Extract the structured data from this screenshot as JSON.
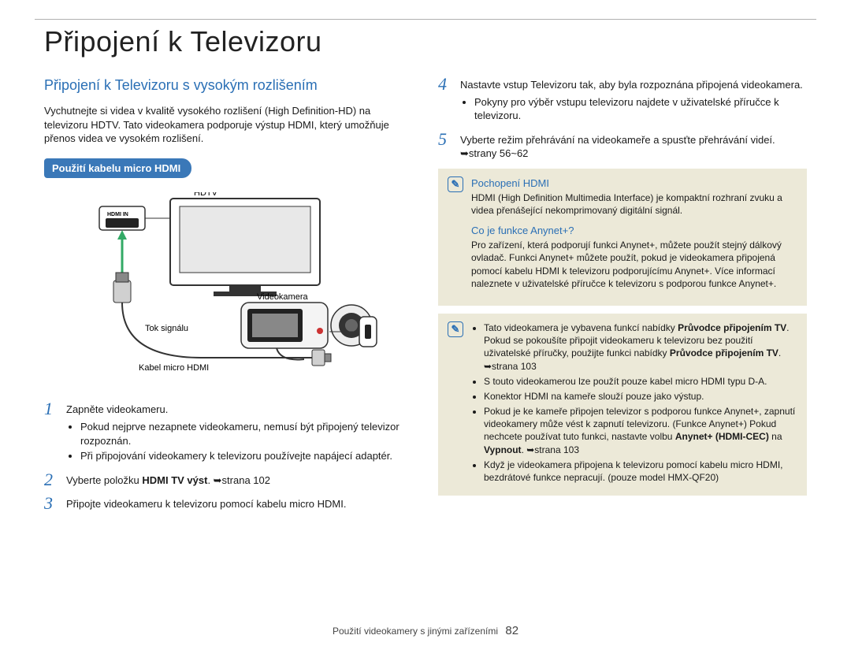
{
  "page": {
    "title": "Připojení k Televizoru",
    "footer_label": "Použití videokamery s jinými zařízeními",
    "page_number": "82"
  },
  "colors": {
    "accent": "#2a6fb5",
    "pill_bg": "#3a78b8",
    "box_bg": "#ece9d8",
    "text": "#1a1a1a"
  },
  "left": {
    "heading": "Připojení k Televizoru s vysokým rozlišením",
    "intro": "Vychutnejte si videa v kvalitě vysokého rozlišení (High Definition-HD) na televizoru HDTV. Tato videokamera podporuje výstup HDMI, který umožňuje přenos videa ve vysokém rozlišení.",
    "pill": "Použití kabelu micro HDMI",
    "diagram_labels": {
      "hdtv": "HDTV",
      "hdmi_in": "HDMI IN",
      "camcorder": "Videokamera",
      "signal": "Tok signálu",
      "cable": "Kabel micro HDMI"
    },
    "steps": [
      {
        "num": "1",
        "text": "Zapněte videokameru.",
        "bullets": [
          "Pokud nejprve nezapnete videokameru, nemusí být připojený televizor rozpoznán.",
          "Při připojování videokamery k televizoru používejte napájecí adaptér."
        ]
      },
      {
        "num": "2",
        "text_html": "Vyberte položku <b>HDMI TV výst</b>. ➥strana 102"
      },
      {
        "num": "3",
        "text": "Připojte videokameru k televizoru pomocí kabelu micro HDMI."
      }
    ]
  },
  "right": {
    "steps": [
      {
        "num": "4",
        "text": "Nastavte vstup Televizoru tak, aby byla rozpoznána připojená videokamera.",
        "bullets": [
          "Pokyny pro výběr vstupu televizoru najdete v uživatelské příručce k televizoru."
        ]
      },
      {
        "num": "5",
        "text": "Vyberte režim přehrávání na videokameře a spusťte přehrávání videí. ➥strany 56~62"
      }
    ],
    "box1": {
      "icon": "✎",
      "sections": [
        {
          "title": "Pochopení HDMI",
          "body": "HDMI (High Definition Multimedia Interface) je kompaktní rozhraní zvuku a videa přenášející nekomprimovaný digitální signál."
        },
        {
          "title": "Co je funkce Anynet+?",
          "body": "Pro zařízení, která podporují funkci Anynet+, můžete použít stejný dálkový ovladač. Funkci Anynet+ můžete použít, pokud je videokamera připojená pomocí kabelu HDMI k televizoru podporujícímu Anynet+. Více informací naleznete v uživatelské příručce k televizoru s podporou funkce Anynet+."
        }
      ]
    },
    "box2": {
      "icon": "✎",
      "bullets_html": [
        "Tato videokamera je vybavena funkcí nabídky <b>Průvodce připojením TV</b>. Pokud se pokoušíte připojit videokameru k televizoru bez použití uživatelské příručky, použijte funkci nabídky <b>Průvodce připojením TV</b>. ➥strana 103",
        "S touto videokamerou lze použít pouze kabel micro HDMI typu D-A.",
        "Konektor HDMI na kameře slouží pouze jako výstup.",
        "Pokud je ke kameře připojen televizor s podporou funkce Anynet+, zapnutí videokamery může vést k zapnutí televizoru. (Funkce Anynet+) Pokud nechcete používat tuto funkci, nastavte volbu <b>Anynet+ (HDMI-CEC)</b> na <b>Vypnout</b>. ➥strana 103",
        "Když je videokamera připojena k televizoru pomocí kabelu micro HDMI, bezdrátové funkce nepracují. (pouze model HMX-QF20)"
      ]
    }
  }
}
